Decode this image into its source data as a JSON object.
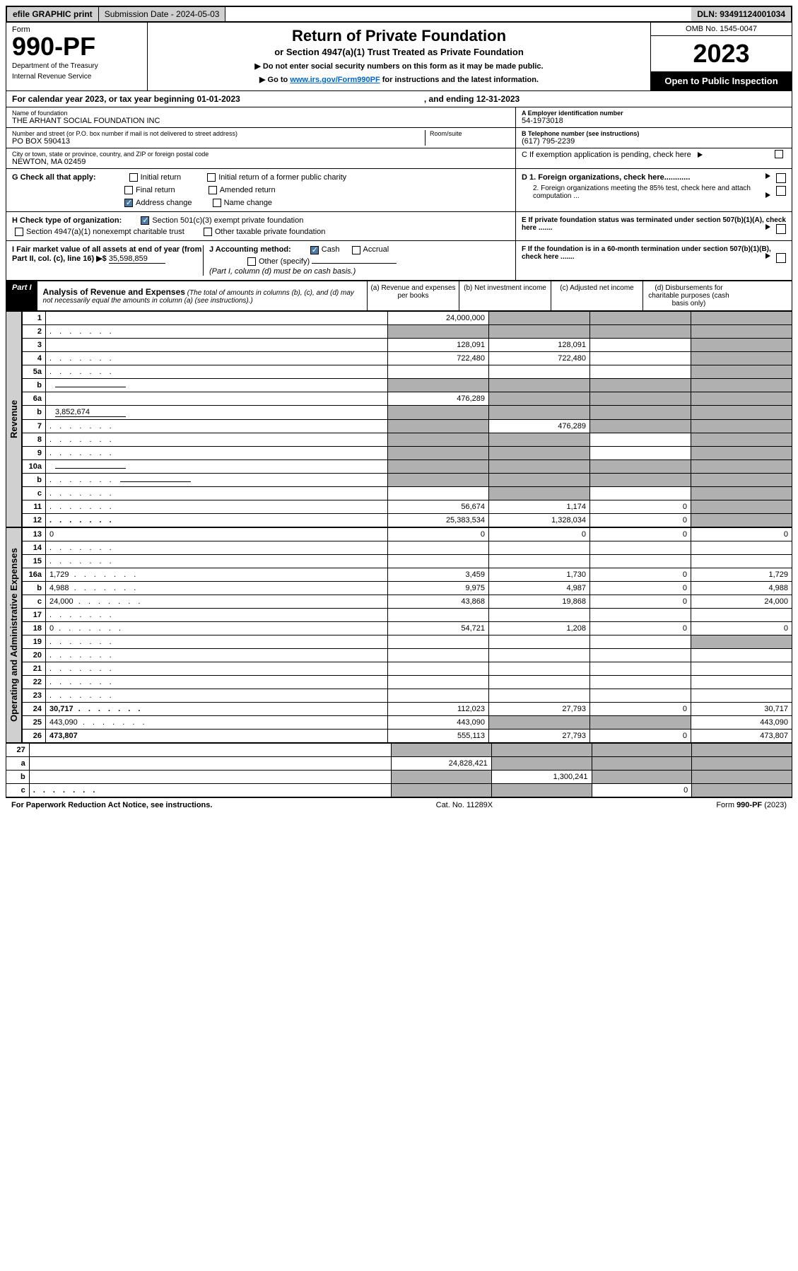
{
  "topbar": {
    "efile": "efile GRAPHIC print",
    "submission": "Submission Date - 2024-05-03",
    "dln": "DLN: 93491124001034"
  },
  "header": {
    "form_label": "Form",
    "form_num": "990-PF",
    "dept1": "Department of the Treasury",
    "dept2": "Internal Revenue Service",
    "title": "Return of Private Foundation",
    "subtitle": "or Section 4947(a)(1) Trust Treated as Private Foundation",
    "instr1": "▶ Do not enter social security numbers on this form as it may be made public.",
    "instr2_pre": "▶ Go to ",
    "instr2_link": "www.irs.gov/Form990PF",
    "instr2_post": " for instructions and the latest information.",
    "omb": "OMB No. 1545-0047",
    "year": "2023",
    "open": "Open to Public Inspection"
  },
  "calyear": {
    "text1": "For calendar year 2023, or tax year beginning 01-01-2023",
    "text2": ", and ending 12-31-2023"
  },
  "info": {
    "name_label": "Name of foundation",
    "name": "THE ARHANT SOCIAL FOUNDATION INC",
    "addr_label": "Number and street (or P.O. box number if mail is not delivered to street address)",
    "addr": "PO BOX 590413",
    "room_label": "Room/suite",
    "city_label": "City or town, state or province, country, and ZIP or foreign postal code",
    "city": "NEWTON, MA  02459",
    "ein_label": "A Employer identification number",
    "ein": "54-1973018",
    "phone_label": "B Telephone number (see instructions)",
    "phone": "(617) 795-2239",
    "c_text": "C If exemption application is pending, check here"
  },
  "checks": {
    "g_label": "G Check all that apply:",
    "g_initial": "Initial return",
    "g_initial_former": "Initial return of a former public charity",
    "g_final": "Final return",
    "g_amended": "Amended return",
    "g_address": "Address change",
    "g_name": "Name change",
    "h_label": "H Check type of organization:",
    "h_501c3": "Section 501(c)(3) exempt private foundation",
    "h_4947": "Section 4947(a)(1) nonexempt charitable trust",
    "h_other": "Other taxable private foundation",
    "i_label": "I Fair market value of all assets at end of year (from Part II, col. (c), line 16) ▶$",
    "i_value": "35,598,859",
    "j_label": "J Accounting method:",
    "j_cash": "Cash",
    "j_accrual": "Accrual",
    "j_other": "Other (specify)",
    "j_note": "(Part I, column (d) must be on cash basis.)",
    "d1": "D 1. Foreign organizations, check here............",
    "d2": "2. Foreign organizations meeting the 85% test, check here and attach computation ...",
    "e": "E  If private foundation status was terminated under section 507(b)(1)(A), check here .......",
    "f": "F  If the foundation is in a 60-month termination under section 507(b)(1)(B), check here .......",
    "arrow": "▶"
  },
  "part1": {
    "label": "Part I",
    "title": "Analysis of Revenue and Expenses",
    "note": "(The total of amounts in columns (b), (c), and (d) may not necessarily equal the amounts in column (a) (see instructions).)",
    "col_a": "(a) Revenue and expenses per books",
    "col_b": "(b) Net investment income",
    "col_c": "(c) Adjusted net income",
    "col_d": "(d) Disbursements for charitable purposes (cash basis only)"
  },
  "side": {
    "revenue": "Revenue",
    "expenses": "Operating and Administrative Expenses"
  },
  "rows": [
    {
      "n": "1",
      "d": "",
      "a": "24,000,000",
      "b": "",
      "c": "",
      "sb": true,
      "sc": true,
      "sd": true
    },
    {
      "n": "2",
      "d": "",
      "dots": true,
      "a": "",
      "b": "",
      "c": "",
      "sa": true,
      "sb": true,
      "sc": true,
      "sd": true
    },
    {
      "n": "3",
      "d": "",
      "a": "128,091",
      "b": "128,091",
      "c": "",
      "sd": true
    },
    {
      "n": "4",
      "d": "",
      "dots": true,
      "a": "722,480",
      "b": "722,480",
      "c": "",
      "sd": true
    },
    {
      "n": "5a",
      "d": "",
      "dots": true,
      "a": "",
      "b": "",
      "c": "",
      "sd": true
    },
    {
      "n": "b",
      "d": "",
      "inline": true,
      "a": "",
      "b": "",
      "c": "",
      "sa": true,
      "sb": true,
      "sc": true,
      "sd": true
    },
    {
      "n": "6a",
      "d": "",
      "a": "476,289",
      "b": "",
      "c": "",
      "sb": true,
      "sc": true,
      "sd": true
    },
    {
      "n": "b",
      "d": "",
      "inline": true,
      "iv": "3,852,674",
      "a": "",
      "b": "",
      "c": "",
      "sa": true,
      "sb": true,
      "sc": true,
      "sd": true
    },
    {
      "n": "7",
      "d": "",
      "dots": true,
      "a": "",
      "b": "476,289",
      "c": "",
      "sa": true,
      "sc": true,
      "sd": true
    },
    {
      "n": "8",
      "d": "",
      "dots": true,
      "a": "",
      "b": "",
      "c": "",
      "sa": true,
      "sb": true,
      "sd": true
    },
    {
      "n": "9",
      "d": "",
      "dots": true,
      "a": "",
      "b": "",
      "c": "",
      "sa": true,
      "sb": true,
      "sd": true
    },
    {
      "n": "10a",
      "d": "",
      "inline": true,
      "a": "",
      "b": "",
      "c": "",
      "sa": true,
      "sb": true,
      "sc": true,
      "sd": true
    },
    {
      "n": "b",
      "d": "",
      "dots": true,
      "inline": true,
      "a": "",
      "b": "",
      "c": "",
      "sa": true,
      "sb": true,
      "sc": true,
      "sd": true
    },
    {
      "n": "c",
      "d": "",
      "dots": true,
      "a": "",
      "b": "",
      "c": "",
      "sb": true,
      "sd": true
    },
    {
      "n": "11",
      "d": "",
      "dots": true,
      "a": "56,674",
      "b": "1,174",
      "c": "0",
      "sd": true
    },
    {
      "n": "12",
      "d": "",
      "dots": true,
      "bold": true,
      "a": "25,383,534",
      "b": "1,328,034",
      "c": "0",
      "sd": true
    }
  ],
  "exp_rows": [
    {
      "n": "13",
      "d": "0",
      "a": "0",
      "b": "0",
      "c": "0"
    },
    {
      "n": "14",
      "d": "",
      "dots": true,
      "a": "",
      "b": "",
      "c": ""
    },
    {
      "n": "15",
      "d": "",
      "dots": true,
      "a": "",
      "b": "",
      "c": ""
    },
    {
      "n": "16a",
      "d": "1,729",
      "dots": true,
      "a": "3,459",
      "b": "1,730",
      "c": "0"
    },
    {
      "n": "b",
      "d": "4,988",
      "dots": true,
      "a": "9,975",
      "b": "4,987",
      "c": "0"
    },
    {
      "n": "c",
      "d": "24,000",
      "dots": true,
      "a": "43,868",
      "b": "19,868",
      "c": "0"
    },
    {
      "n": "17",
      "d": "",
      "dots": true,
      "a": "",
      "b": "",
      "c": ""
    },
    {
      "n": "18",
      "d": "0",
      "dots": true,
      "a": "54,721",
      "b": "1,208",
      "c": "0"
    },
    {
      "n": "19",
      "d": "",
      "dots": true,
      "a": "",
      "b": "",
      "c": "",
      "sd": true
    },
    {
      "n": "20",
      "d": "",
      "dots": true,
      "a": "",
      "b": "",
      "c": ""
    },
    {
      "n": "21",
      "d": "",
      "dots": true,
      "a": "",
      "b": "",
      "c": ""
    },
    {
      "n": "22",
      "d": "",
      "dots": true,
      "a": "",
      "b": "",
      "c": ""
    },
    {
      "n": "23",
      "d": "",
      "dots": true,
      "a": "",
      "b": "",
      "c": ""
    },
    {
      "n": "24",
      "d": "30,717",
      "dots": true,
      "bold": true,
      "a": "112,023",
      "b": "27,793",
      "c": "0"
    },
    {
      "n": "25",
      "d": "443,090",
      "dots": true,
      "a": "443,090",
      "b": "",
      "c": "",
      "sb": true,
      "sc": true
    },
    {
      "n": "26",
      "d": "473,807",
      "bold": true,
      "a": "555,113",
      "b": "27,793",
      "c": "0"
    }
  ],
  "final_rows": [
    {
      "n": "27",
      "d": "",
      "a": "",
      "b": "",
      "c": "",
      "sa": true,
      "sb": true,
      "sc": true,
      "sd": true
    },
    {
      "n": "a",
      "d": "",
      "bold": true,
      "a": "24,828,421",
      "b": "",
      "c": "",
      "sb": true,
      "sc": true,
      "sd": true
    },
    {
      "n": "b",
      "d": "",
      "bold": true,
      "a": "",
      "b": "1,300,241",
      "c": "",
      "sa": true,
      "sc": true,
      "sd": true
    },
    {
      "n": "c",
      "d": "",
      "dots": true,
      "bold": true,
      "a": "",
      "b": "",
      "c": "0",
      "sa": true,
      "sb": true,
      "sd": true
    }
  ],
  "footer": {
    "left": "For Paperwork Reduction Act Notice, see instructions.",
    "mid": "Cat. No. 11289X",
    "right": "Form 990-PF (2023)"
  }
}
